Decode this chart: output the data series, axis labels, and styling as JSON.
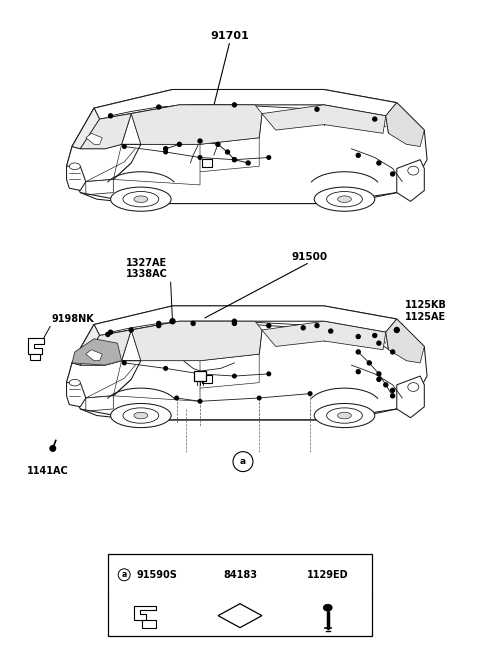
{
  "bg_color": "#ffffff",
  "car1_label": "91701",
  "car2_label": "91500",
  "label_1327": "1327AE\n1338AC",
  "label_9198": "9198NK",
  "label_1125": "1125KB\n1125AE",
  "label_1141": "1141AC",
  "table_headers": [
    "91590S",
    "84183",
    "1129ED"
  ],
  "callout_a": "a",
  "line_color": "#1a1a1a",
  "dot_color": "#000000",
  "gray_fill": "#b0b0b0"
}
